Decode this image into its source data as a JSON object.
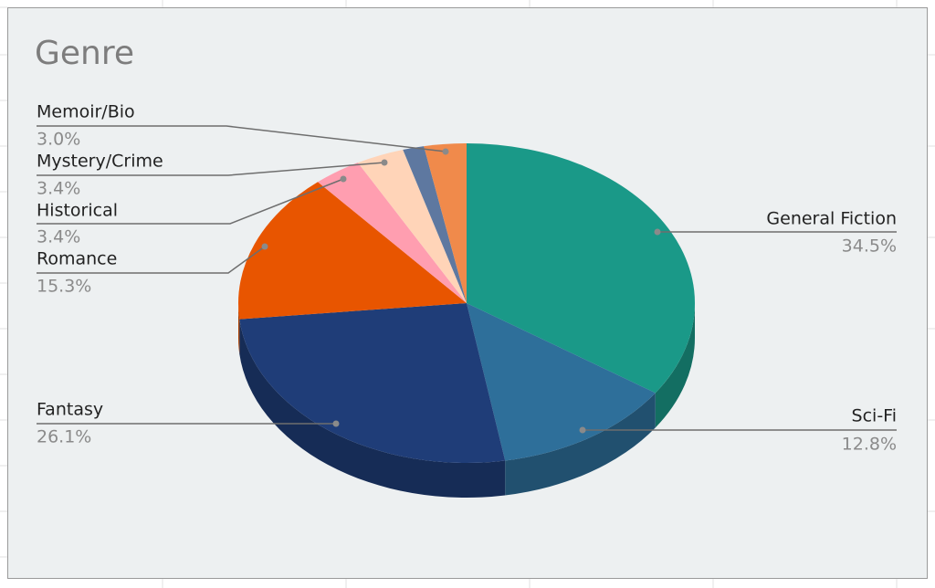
{
  "chart_data": {
    "type": "pie3d",
    "title": "Genre",
    "categories": [
      "General Fiction",
      "Sci-Fi",
      "Fantasy",
      "Romance",
      "Historical",
      "Mystery/Crime",
      null,
      "Memoir/Bio"
    ],
    "values": [
      34.5,
      12.8,
      26.1,
      15.3,
      3.4,
      3.4,
      1.5,
      3.0
    ],
    "value_labels": [
      "34.5%",
      "12.8%",
      "26.1%",
      "15.3%",
      "3.4%",
      "3.4%",
      null,
      "3.0%"
    ],
    "colors": [
      "#1a9988",
      "#2e6f9a",
      "#1f3d78",
      "#e85500",
      "#ff9eb0",
      "#ffd4b8",
      "#5e78a0",
      "#f08a4b"
    ]
  }
}
